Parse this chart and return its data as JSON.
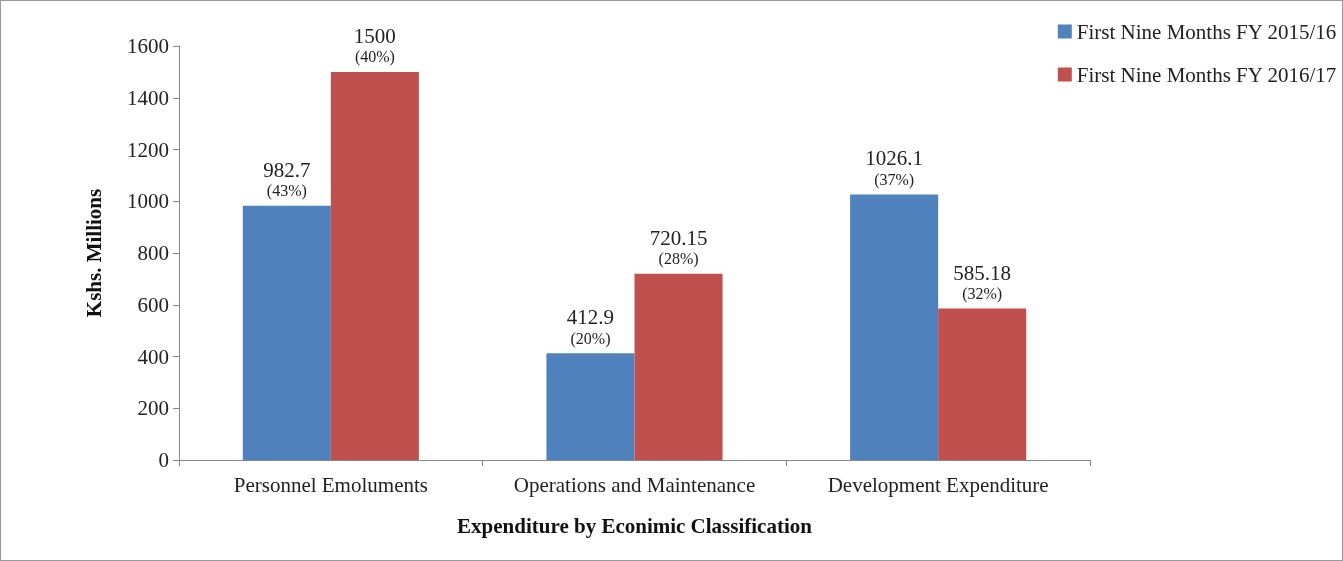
{
  "chart_data": {
    "type": "bar",
    "xlabel": "Expenditure by Econimic Classification",
    "ylabel": "Kshs. Millions",
    "categories": [
      "Personnel Emoluments",
      "Operations and Maintenance",
      "Development Expenditure"
    ],
    "series": [
      {
        "name": "First Nine Months FY 2015/16",
        "color": "#4f81bd",
        "values": [
          982.7,
          412.9,
          1026.1
        ],
        "value_labels": [
          "982.7\n(43%)",
          "412.9\n(20%)",
          "1026.1\n(37%)"
        ]
      },
      {
        "name": "First Nine Months FY 2016/17",
        "color": "#c0504d",
        "values": [
          1500,
          720.15,
          585.18
        ],
        "value_labels": [
          "1500\n(40%)",
          "720.15\n(28%)",
          "585.18\n(32%)"
        ]
      }
    ],
    "ylim": [
      0,
      1600
    ],
    "yticks": [
      0,
      200,
      400,
      600,
      800,
      1000,
      1200,
      1400,
      1600
    ],
    "grid": false,
    "legend": "top right"
  }
}
